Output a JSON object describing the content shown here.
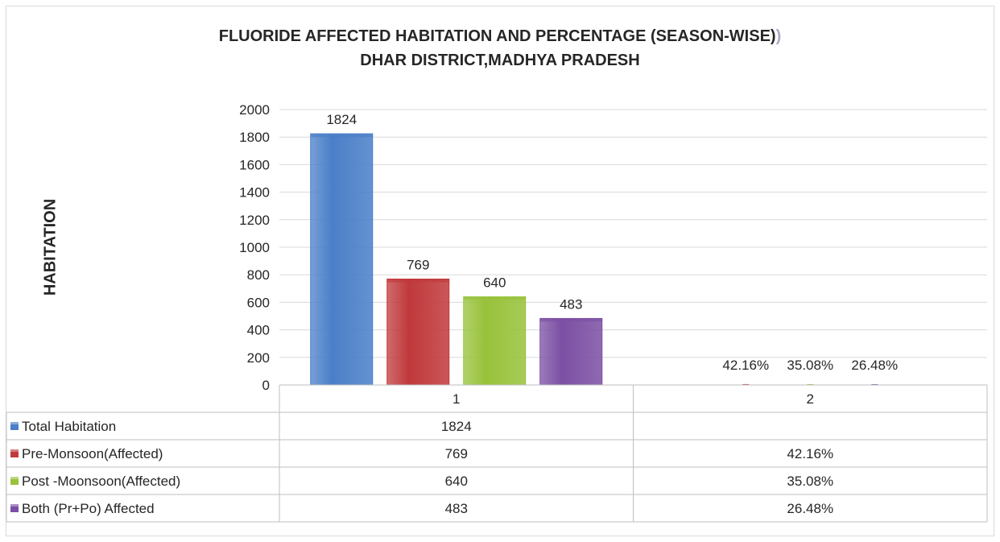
{
  "chart_data": {
    "type": "bar",
    "title": "FLUORIDE AFFECTED HABITATION AND PERCENTAGE (SEASON-WISE)",
    "title_suffix": ")",
    "subtitle": "DHAR DISTRICT,MADHYA PRADESH",
    "ylabel": "HABITATION",
    "xlabel": "",
    "ylim": [
      0,
      2000
    ],
    "yticks": [
      "0",
      "200",
      "400",
      "600",
      "800",
      "1000",
      "1200",
      "1400",
      "1600",
      "1800",
      "2000"
    ],
    "categories": [
      "1",
      "2"
    ],
    "grid": true,
    "legend": "data-table",
    "series": [
      {
        "name": "Total Habitation",
        "color": "#4a7fc8",
        "values": [
          1824,
          null
        ],
        "labels": [
          "1824",
          ""
        ]
      },
      {
        "name": "Pre-Monsoon(Affected)",
        "color": "#c0393b",
        "values": [
          769,
          0.4216
        ],
        "labels": [
          "769",
          "42.16%"
        ]
      },
      {
        "name": "Post -Moonsoon(Affected)",
        "color": "#98c23a",
        "values": [
          640,
          0.3508
        ],
        "labels": [
          "640",
          "35.08%"
        ]
      },
      {
        "name": " Both  (Pr+Po) Affected",
        "color": "#7b4fa3",
        "values": [
          483,
          0.2648
        ],
        "labels": [
          "483",
          "26.48%"
        ]
      }
    ]
  }
}
